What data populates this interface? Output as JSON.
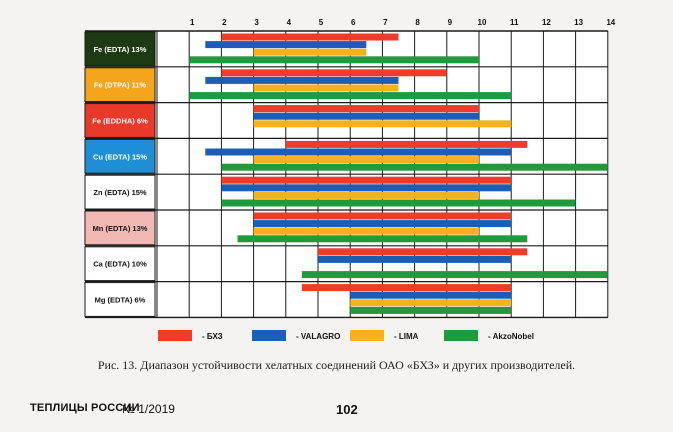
{
  "chart_data": {
    "type": "bar",
    "orientation": "horizontal-range",
    "x_ticks": [
      1,
      2,
      3,
      4,
      5,
      6,
      7,
      8,
      9,
      10,
      11,
      12,
      13,
      14
    ],
    "xlim": [
      0,
      14
    ],
    "grid": true,
    "categories": [
      {
        "label": "Fe (EDTA) 13%",
        "bg": "#1e3a12",
        "fg": "#ffffff"
      },
      {
        "label": "Fe (DTPA) 11%",
        "bg": "#f5a51a",
        "fg": "#ffffff"
      },
      {
        "label": "Fe (EDDHA) 6%",
        "bg": "#e8392b",
        "fg": "#ffffff"
      },
      {
        "label": "Cu (EDTA) 15%",
        "bg": "#1e8fd6",
        "fg": "#ffffff"
      },
      {
        "label": "Zn (EDTA) 15%",
        "bg": "#ffffff",
        "fg": "#111111"
      },
      {
        "label": "Mn (EDTA) 13%",
        "bg": "#f2b8b4",
        "fg": "#111111"
      },
      {
        "label": "Ca (EDTA) 10%",
        "bg": "#ffffff",
        "fg": "#111111"
      },
      {
        "label": "Mg (EDTA) 6%",
        "bg": "#ffffff",
        "fg": "#111111"
      }
    ],
    "series": [
      {
        "name": "БХЗ",
        "color": "#ee3b2a",
        "ranges": [
          [
            2,
            7.5
          ],
          [
            2,
            9
          ],
          [
            3,
            10
          ],
          [
            4,
            11.5
          ],
          [
            2,
            11
          ],
          [
            3,
            11
          ],
          [
            5,
            11.5
          ],
          [
            4.5,
            11
          ]
        ]
      },
      {
        "name": "VALAGRO",
        "color": "#1c5db5",
        "ranges": [
          [
            1.5,
            6.5
          ],
          [
            1.5,
            7.5
          ],
          [
            3,
            10
          ],
          [
            1.5,
            11
          ],
          [
            2,
            11
          ],
          [
            3,
            11
          ],
          [
            5,
            11
          ],
          [
            6,
            11
          ]
        ]
      },
      {
        "name": "LIMA",
        "color": "#f6b21c",
        "ranges": [
          [
            3,
            6.5
          ],
          [
            3,
            7.5
          ],
          [
            3,
            11
          ],
          [
            3,
            10
          ],
          [
            3,
            10
          ],
          [
            3,
            10
          ],
          null,
          [
            6,
            11
          ]
        ]
      },
      {
        "name": "AkzoNobel",
        "color": "#1f9a3c",
        "ranges": [
          [
            1,
            10
          ],
          [
            1,
            11
          ],
          null,
          [
            2,
            14
          ],
          [
            2,
            13
          ],
          [
            2.5,
            11.5
          ],
          [
            4.5,
            14
          ],
          [
            6,
            11
          ]
        ]
      }
    ],
    "legend": [
      {
        "marker": "- БХЗ"
      },
      {
        "marker": "- VALAGRO"
      },
      {
        "marker": "- LIMA"
      },
      {
        "marker": "- AkzoNobel"
      }
    ],
    "legend_position": "bottom"
  },
  "caption": "Рис. 13. Диапазон устойчивости хелатных соединений ОАО «БХЗ» и других производителей.",
  "footer": {
    "magazine": "ТЕПЛИЦЫ РОССИИ",
    "issue": "№ 1/2019",
    "page": "102"
  }
}
